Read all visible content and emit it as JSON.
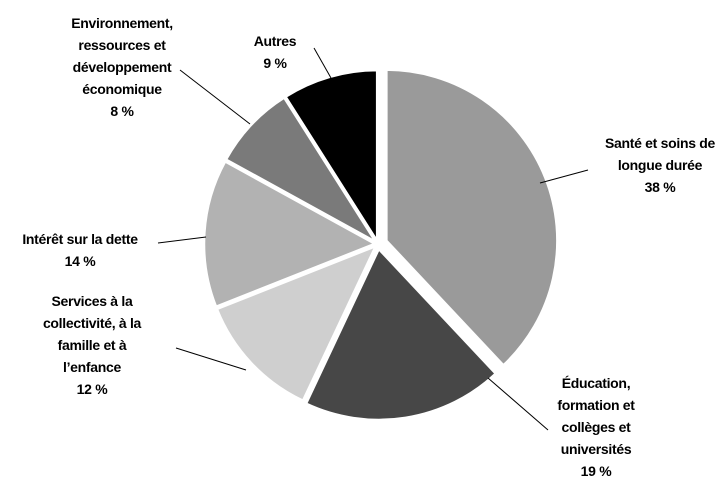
{
  "chart_data": {
    "type": "pie",
    "categories": [
      "Santé et soins de longue durée",
      "Éducation, formation et collèges et universités",
      "Services à la collectivité, à la famille et à l’enfance",
      "Intérêt sur la dette",
      "Environnement, ressources et développement économique",
      "Autres"
    ],
    "values": [
      38,
      19,
      12,
      14,
      8,
      9
    ],
    "value_labels": [
      "38 %",
      "19 %",
      "12 %",
      "14 %",
      "8 %",
      "9 %"
    ],
    "colors": [
      "#9a9a9a",
      "#474747",
      "#cfcfcf",
      "#b2b2b2",
      "#7a7a7a",
      "#000000"
    ]
  }
}
